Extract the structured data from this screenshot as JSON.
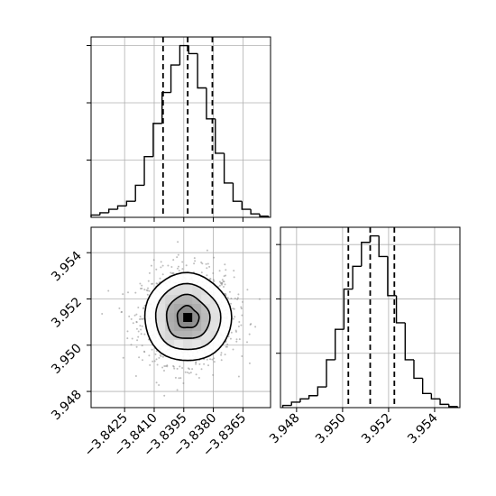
{
  "chart_data": {
    "type": "corner",
    "parameters": [
      {
        "ticks": [
          -3.8425,
          -3.841,
          -3.8395,
          -3.838,
          -3.8365
        ],
        "tick_labels": [
          "−3.8425",
          "−3.8410",
          "−3.8395",
          "−3.8380",
          "−3.8365"
        ],
        "range": [
          -3.8442,
          -3.8351
        ],
        "quantiles": [
          -3.84055,
          -3.8393,
          -3.83805
        ]
      },
      {
        "ticks": [
          3.948,
          3.95,
          3.952,
          3.954
        ],
        "tick_labels": [
          "3.948",
          "3.950",
          "3.952",
          "3.954"
        ],
        "range": [
          3.9473,
          3.9551
        ],
        "quantiles": [
          3.95025,
          3.9512,
          3.95225
        ]
      }
    ],
    "histograms": [
      {
        "parameter_index": 0,
        "bin_edges": [
          -3.8442,
          -3.84375,
          -3.8433,
          -3.84285,
          -3.8424,
          -3.84195,
          -3.8415,
          -3.84105,
          -3.8406,
          -3.84015,
          -3.8397,
          -3.83925,
          -3.8388,
          -3.83835,
          -3.8379,
          -3.83745,
          -3.837,
          -3.83655,
          -3.8361,
          -3.83565,
          -3.8352
        ],
        "counts": [
          2,
          4,
          7,
          10,
          14,
          28,
          53,
          82,
          109,
          133,
          150,
          143,
          113,
          86,
          56,
          30,
          14,
          7,
          3,
          1
        ]
      },
      {
        "parameter_index": 1,
        "bin_edges": [
          3.9474,
          3.94778,
          3.94816,
          3.94854,
          3.94892,
          3.9493,
          3.94968,
          3.95006,
          3.95044,
          3.95082,
          3.9512,
          3.95158,
          3.95196,
          3.95234,
          3.95272,
          3.9531,
          3.95348,
          3.95386,
          3.95424,
          3.95462,
          3.955
        ],
        "counts": [
          2,
          5,
          8,
          11,
          19,
          44,
          72,
          109,
          130,
          152,
          158,
          139,
          103,
          78,
          44,
          27,
          13,
          8,
          3,
          1
        ]
      }
    ],
    "joint": {
      "x_parameter_index": 0,
      "y_parameter_index": 1,
      "center": [
        -3.8393,
        3.9512
      ],
      "sigma": [
        0.0011,
        0.00095
      ],
      "contour_levels": [
        0.5,
        1.0,
        1.5,
        2.0
      ]
    },
    "grid": true,
    "line_color": "#000000",
    "fill_color": "#808080"
  }
}
